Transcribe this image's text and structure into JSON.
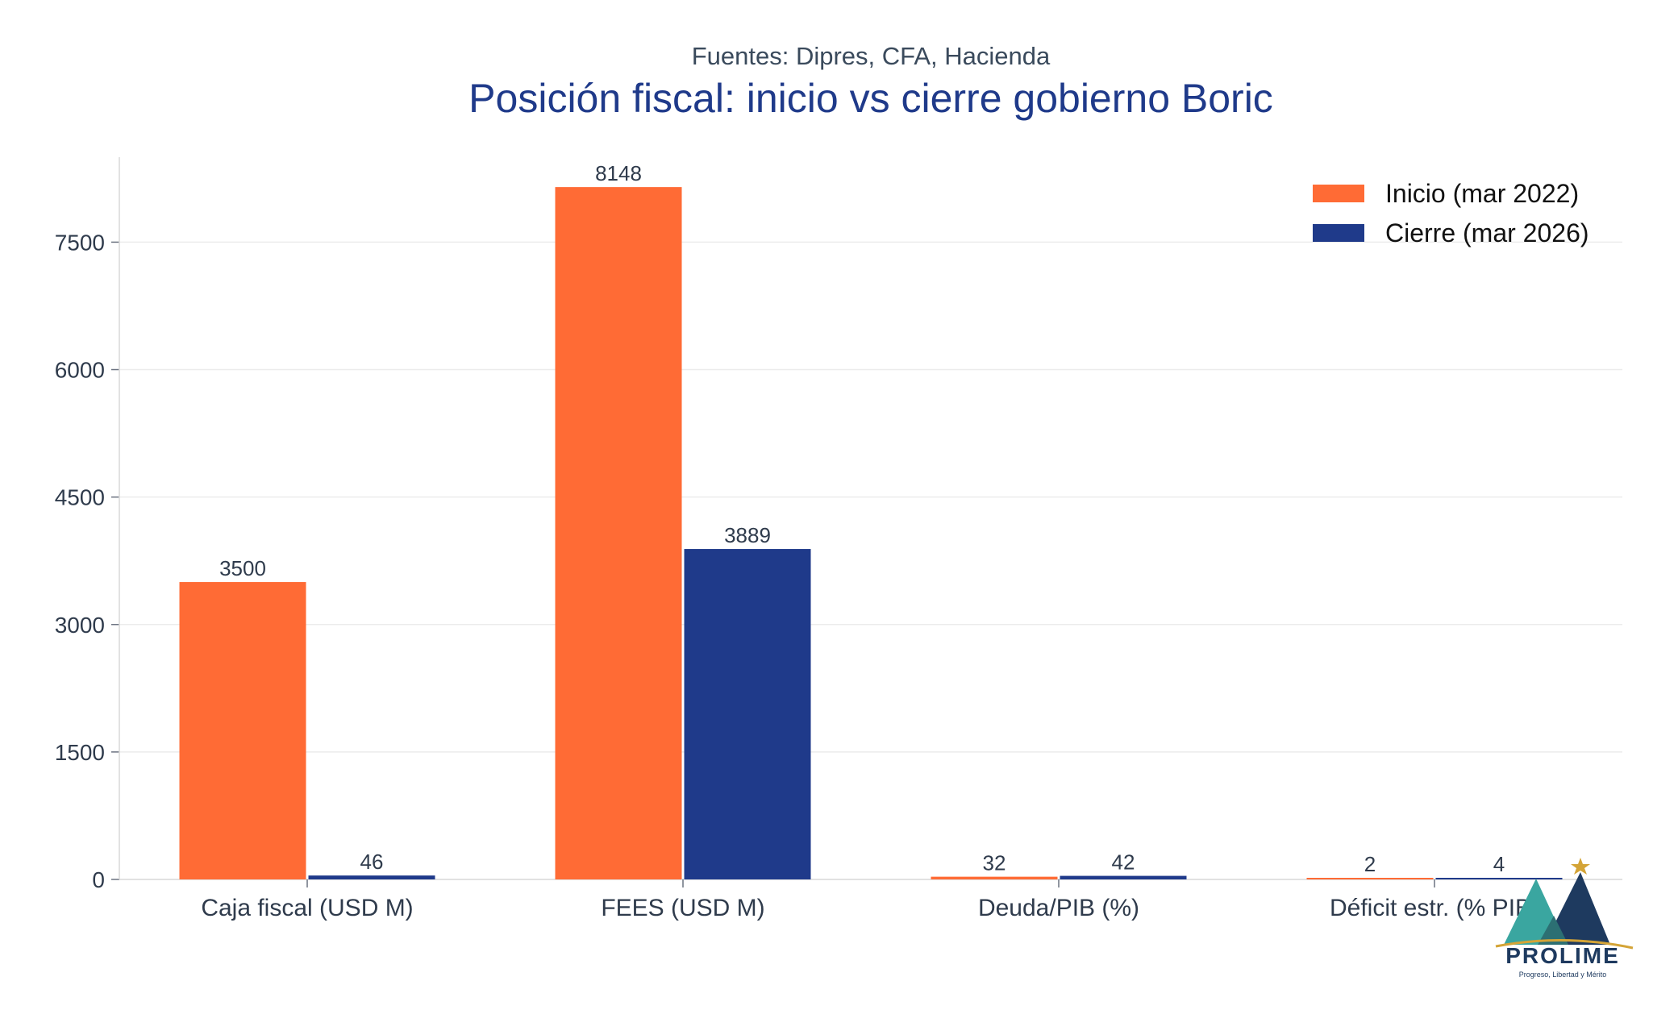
{
  "header": {
    "subtitle": "Fuentes: Dipres, CFA, Hacienda",
    "title": "Posición fiscal: inicio vs cierre gobierno Boric"
  },
  "chart_data": {
    "type": "bar",
    "title": "Posición fiscal: inicio vs cierre gobierno Boric",
    "subtitle": "Fuentes: Dipres, CFA, Hacienda",
    "categories": [
      "Caja fiscal (USD M)",
      "FEES (USD M)",
      "Deuda/PIB (%)",
      "Déficit estr. (% PIB)"
    ],
    "series": [
      {
        "name": "Inicio (mar 2022)",
        "color": "#ff6b35",
        "values": [
          3500,
          8148,
          32,
          2
        ]
      },
      {
        "name": "Cierre (mar 2026)",
        "color": "#1f3a8a",
        "values": [
          46,
          3889,
          42,
          4
        ]
      }
    ],
    "yticks": [
      0,
      1500,
      3000,
      4500,
      6000,
      7500
    ],
    "ylim": [
      0,
      8500
    ],
    "grid": true,
    "legend_position": "top-right"
  },
  "logo": {
    "name": "PROLIME",
    "tagline": "Progreso, Libertad y Mérito"
  }
}
